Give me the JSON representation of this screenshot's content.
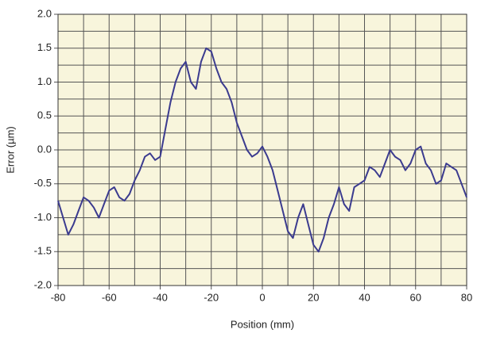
{
  "chart_data": {
    "type": "line",
    "x_label": "Position (mm)",
    "y_label": "Error (µm)",
    "x": [
      -80,
      -78,
      -76,
      -74,
      -72,
      -70,
      -68,
      -66,
      -64,
      -62,
      -60,
      -58,
      -56,
      -54,
      -52,
      -50,
      -48,
      -46,
      -44,
      -42,
      -40,
      -38,
      -36,
      -34,
      -32,
      -30,
      -28,
      -26,
      -24,
      -22,
      -20,
      -18,
      -16,
      -14,
      -12,
      -10,
      -8,
      -6,
      -4,
      -2,
      0,
      2,
      4,
      6,
      8,
      10,
      12,
      14,
      16,
      18,
      20,
      22,
      24,
      26,
      28,
      30,
      32,
      34,
      36,
      38,
      40,
      42,
      44,
      46,
      48,
      50,
      52,
      54,
      56,
      58,
      60,
      62,
      64,
      66,
      68,
      70,
      72,
      74,
      76,
      78,
      80
    ],
    "series": [
      {
        "color": "#3b3b8f",
        "values": [
          -0.75,
          -1.0,
          -1.25,
          -1.1,
          -0.9,
          -0.7,
          -0.75,
          -0.85,
          -1.0,
          -0.8,
          -0.6,
          -0.55,
          -0.7,
          -0.75,
          -0.65,
          -0.45,
          -0.3,
          -0.1,
          -0.05,
          -0.15,
          -0.1,
          0.3,
          0.7,
          1.0,
          1.2,
          1.3,
          1.0,
          0.9,
          1.3,
          1.5,
          1.45,
          1.2,
          1.0,
          0.9,
          0.7,
          0.4,
          0.2,
          0.0,
          -0.1,
          -0.05,
          0.05,
          -0.1,
          -0.3,
          -0.6,
          -0.9,
          -1.2,
          -1.3,
          -1.0,
          -0.8,
          -1.1,
          -1.4,
          -1.5,
          -1.3,
          -1.0,
          -0.8,
          -0.55,
          -0.8,
          -0.9,
          -0.55,
          -0.5,
          -0.45,
          -0.25,
          -0.3,
          -0.4,
          -0.2,
          0.0,
          -0.1,
          -0.15,
          -0.3,
          -0.2,
          0.0,
          0.05,
          -0.2,
          -0.3,
          -0.5,
          -0.45,
          -0.2,
          -0.25,
          -0.3,
          -0.5,
          -0.7
        ]
      }
    ],
    "xlim": [
      -80,
      80
    ],
    "ylim": [
      -2,
      2
    ],
    "xticks": [
      -80,
      -60,
      -40,
      -20,
      0,
      20,
      40,
      60,
      80
    ],
    "yticks": [
      {
        "value": 2,
        "label": "2.0"
      },
      1.5,
      {
        "value": 1,
        "label": "1.0"
      },
      0.5,
      {
        "value": 0,
        "label": "0.0"
      },
      -0.5,
      {
        "value": -1,
        "label": "-1.0"
      },
      -1.5,
      {
        "value": -2,
        "label": "-2.0"
      }
    ],
    "x_grid": [
      -70,
      -50,
      -30,
      -10,
      10,
      30,
      50,
      70
    ],
    "y_grid": [
      1.75,
      1.25,
      0.75,
      0.25,
      -0.25,
      -0.75,
      -1.25,
      -1.75
    ],
    "grid": true,
    "background": "#f8f5dc"
  }
}
